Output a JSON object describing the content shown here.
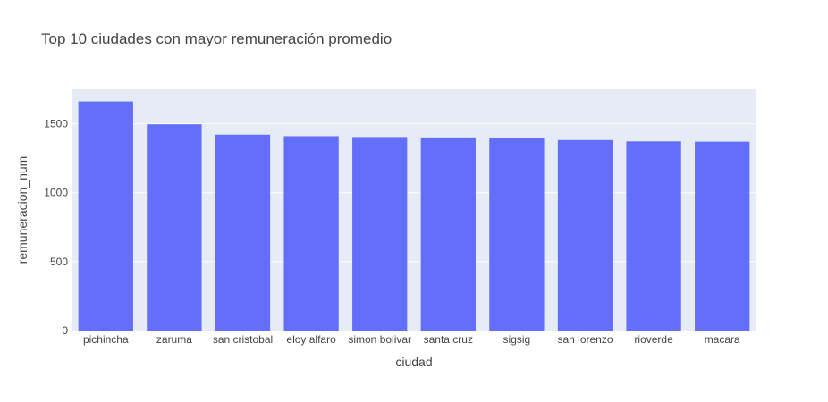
{
  "chart_data": {
    "type": "bar",
    "title": "Top 10 ciudades con mayor remuneración promedio",
    "xlabel": "ciudad",
    "ylabel": "remuneracion_num",
    "categories": [
      "pichincha",
      "zaruma",
      "san cristobal",
      "eloy alfaro",
      "simon bolivar",
      "santa cruz",
      "sigsig",
      "san lorenzo",
      "rioverde",
      "macara"
    ],
    "values": [
      1662,
      1496,
      1421,
      1410,
      1404,
      1401,
      1398,
      1382,
      1372,
      1370
    ],
    "ylim": [
      0,
      1750
    ],
    "yticks": [
      0,
      500,
      1000,
      1500
    ],
    "grid": true,
    "bar_color": "#636efa",
    "plot_bg": "#e5ecf6"
  }
}
